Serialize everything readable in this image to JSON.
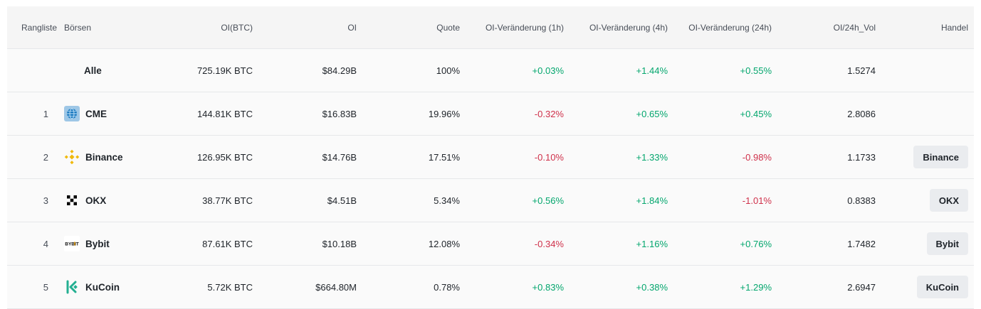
{
  "header": {
    "rank": "Rangliste",
    "exchange": "Börsen",
    "oi_btc": "OI(BTC)",
    "oi": "OI",
    "share": "Quote",
    "change_1h": "OI-Veränderung (1h)",
    "change_4h": "OI-Veränderung (4h)",
    "change_24h": "OI-Veränderung (24h)",
    "oi_vol": "OI/24h_Vol",
    "trade": "Handel"
  },
  "total": {
    "name": "Alle",
    "oi_btc": "725.19K BTC",
    "oi": "$84.29B",
    "share": "100%",
    "change_1h": "+0.03%",
    "change_4h": "+1.44%",
    "change_24h": "+0.55%",
    "oi_vol": "1.5274"
  },
  "rows": [
    {
      "rank": "1",
      "name": "CME",
      "icon": "cme-icon",
      "oi_btc": "144.81K BTC",
      "oi": "$16.83B",
      "share": "19.96%",
      "change_1h": "-0.32%",
      "change_4h": "+0.65%",
      "change_24h": "+0.45%",
      "oi_vol": "2.8086",
      "trade": ""
    },
    {
      "rank": "2",
      "name": "Binance",
      "icon": "binance-icon",
      "oi_btc": "126.95K BTC",
      "oi": "$14.76B",
      "share": "17.51%",
      "change_1h": "-0.10%",
      "change_4h": "+1.33%",
      "change_24h": "-0.98%",
      "oi_vol": "1.1733",
      "trade": "Binance"
    },
    {
      "rank": "3",
      "name": "OKX",
      "icon": "okx-icon",
      "oi_btc": "38.77K BTC",
      "oi": "$4.51B",
      "share": "5.34%",
      "change_1h": "+0.56%",
      "change_4h": "+1.84%",
      "change_24h": "-1.01%",
      "oi_vol": "0.8383",
      "trade": "OKX"
    },
    {
      "rank": "4",
      "name": "Bybit",
      "icon": "bybit-icon",
      "oi_btc": "87.61K BTC",
      "oi": "$10.18B",
      "share": "12.08%",
      "change_1h": "-0.34%",
      "change_4h": "+1.16%",
      "change_24h": "+0.76%",
      "oi_vol": "1.7482",
      "trade": "Bybit"
    },
    {
      "rank": "5",
      "name": "KuCoin",
      "icon": "kucoin-icon",
      "oi_btc": "5.72K BTC",
      "oi": "$664.80M",
      "share": "0.78%",
      "change_1h": "+0.83%",
      "change_4h": "+0.38%",
      "change_24h": "+1.29%",
      "oi_vol": "2.6947",
      "trade": "KuCoin"
    }
  ],
  "colors": {
    "positive": "#03a66d",
    "negative": "#cf304a",
    "binance": "#f0b90b",
    "kucoin": "#23af91"
  },
  "icon_text": {
    "bybit": "BYBIT"
  }
}
